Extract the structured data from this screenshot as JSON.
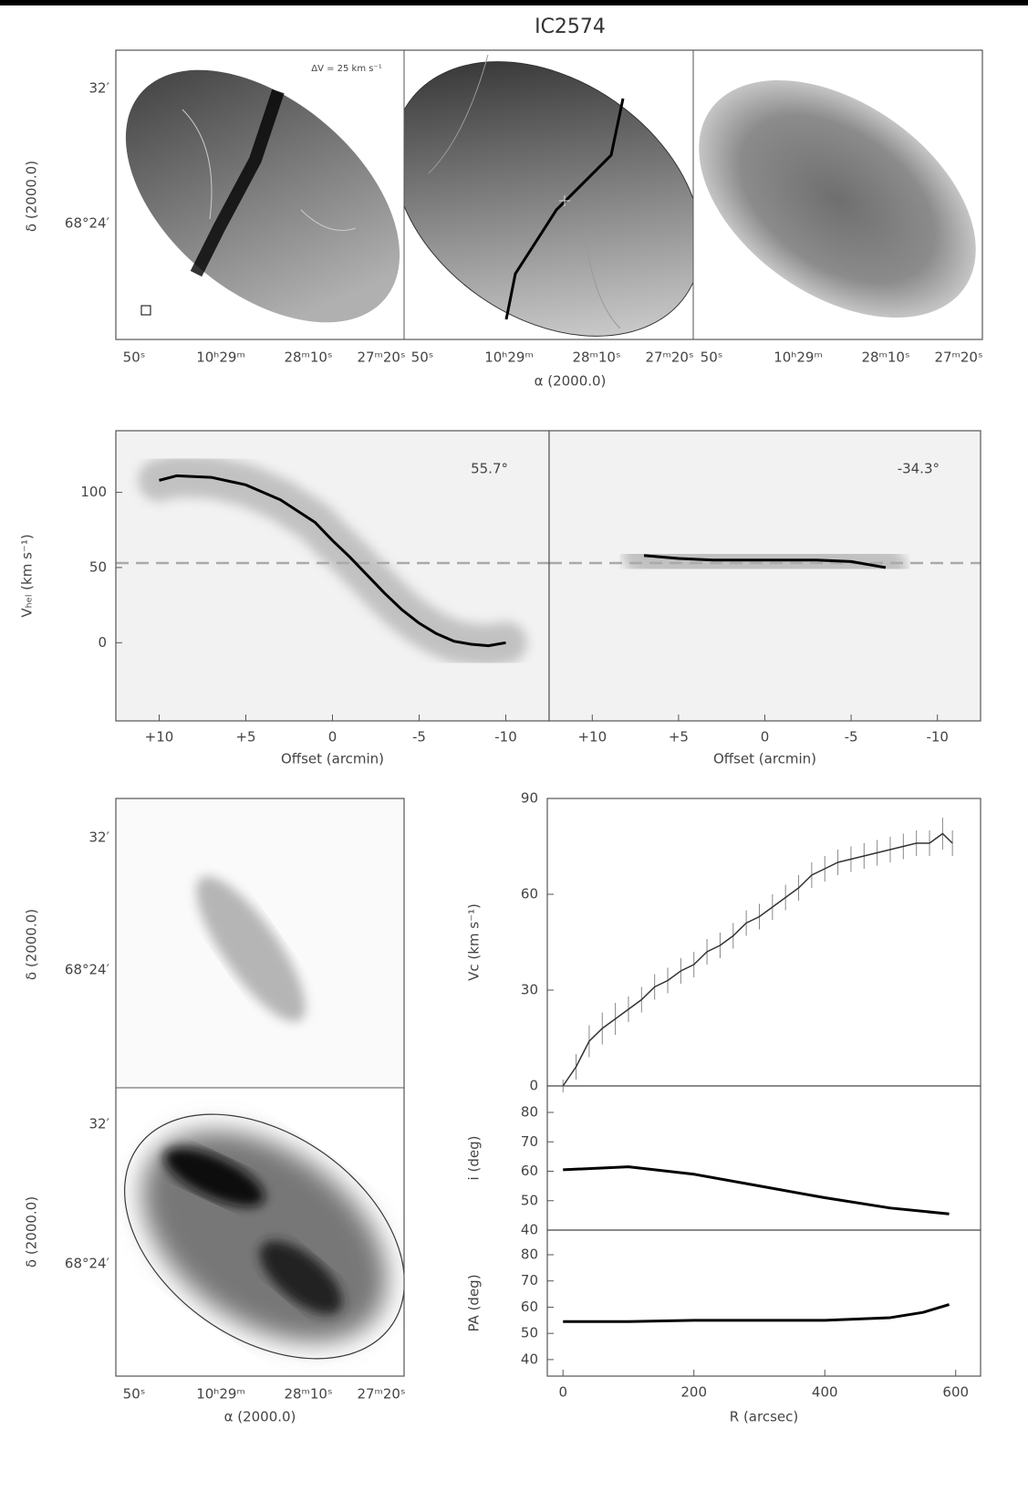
{
  "title": "IC2574",
  "maps": {
    "annotation": "ΔV = 25 km s⁻¹",
    "xticks": [
      "50ˢ",
      "10ʰ29ᵐ",
      "28ᵐ10ˢ",
      "27ᵐ20ˢ"
    ],
    "yticks": [
      "32′",
      "68°24′"
    ],
    "xlabel": "α (2000.0)",
    "ylabel": "δ (2000.0)"
  },
  "chart_data": [
    {
      "type": "line",
      "annotation": "55.7°",
      "color": "#000000",
      "x": [
        10,
        9,
        7,
        5,
        3,
        1,
        0,
        -1,
        -2,
        -3,
        -4,
        -5,
        -6,
        -7,
        -8,
        -9,
        -10
      ],
      "values": [
        108,
        111,
        110,
        105,
        95,
        80,
        68,
        57,
        45,
        33,
        22,
        13,
        6,
        1,
        -1,
        -2,
        0
      ],
      "xlim": [
        12.5,
        -12.5
      ],
      "xticks": [
        {
          "value": 10,
          "label": "+10"
        },
        {
          "value": 5,
          "label": "+5"
        },
        0,
        -5,
        -10
      ],
      "ylim": [
        -52,
        141
      ],
      "yticks": [
        0,
        50,
        100
      ],
      "hline": 53,
      "xlabel": "Offset (arcmin)",
      "ylabel": "Vₕₑₗ (km s⁻¹)"
    },
    {
      "type": "line",
      "annotation": "-34.3°",
      "color": "#000000",
      "x": [
        7,
        5,
        3,
        0,
        -3,
        -5,
        -7
      ],
      "values": [
        58,
        56,
        55,
        55,
        55,
        54,
        50
      ],
      "xlim": [
        12.5,
        -12.5
      ],
      "xticks": [
        {
          "value": 10,
          "label": "+10"
        },
        {
          "value": 5,
          "label": "+5"
        },
        0,
        -5,
        -10
      ],
      "ylim": [
        -52,
        141
      ],
      "hline": 53,
      "xlabel": "Offset (arcmin)"
    },
    {
      "type": "errorbar",
      "color": "#333333",
      "x": [
        0,
        20,
        40,
        60,
        80,
        100,
        120,
        140,
        160,
        180,
        200,
        220,
        240,
        260,
        280,
        300,
        320,
        340,
        360,
        380,
        400,
        420,
        440,
        460,
        480,
        500,
        520,
        540,
        560,
        580,
        595
      ],
      "values": [
        0,
        6,
        14,
        18,
        21,
        24,
        27,
        31,
        33,
        36,
        38,
        42,
        44,
        47,
        51,
        53,
        56,
        59,
        62,
        66,
        68,
        70,
        71,
        72,
        73,
        74,
        75,
        76,
        76,
        79,
        76
      ],
      "errors": [
        2,
        4,
        5,
        5,
        5,
        4,
        4,
        4,
        4,
        4,
        4,
        4,
        4,
        4,
        4,
        4,
        4,
        4,
        4,
        4,
        4,
        4,
        4,
        4,
        4,
        4,
        4,
        4,
        4,
        5,
        4
      ],
      "xlim": [
        -24,
        638
      ],
      "ylim": [
        0,
        90
      ],
      "yticks": [
        0,
        30,
        60,
        90
      ],
      "ylabel": "Vc (km s⁻¹)"
    },
    {
      "type": "line",
      "color": "#000000",
      "x": [
        0,
        100,
        200,
        300,
        400,
        500,
        590
      ],
      "values": [
        60.5,
        61.5,
        59,
        55,
        51,
        47.5,
        45.5
      ],
      "xlim": [
        -24,
        638
      ],
      "ylim": [
        40,
        89
      ],
      "yticks": [
        40,
        50,
        60,
        70,
        80
      ],
      "ylabel": "i (deg)"
    },
    {
      "type": "line",
      "color": "#000000",
      "x": [
        0,
        100,
        200,
        300,
        400,
        500,
        550,
        590
      ],
      "values": [
        54.5,
        54.5,
        55,
        55,
        55,
        56,
        58,
        61
      ],
      "xlim": [
        -24,
        638
      ],
      "ylim": [
        33.7,
        89.4
      ],
      "yticks": [
        40,
        50,
        60,
        70,
        80
      ],
      "xticks": [
        0,
        200,
        400,
        600
      ],
      "xlabel": "R (arcsec)",
      "ylabel": "PA (deg)"
    }
  ]
}
